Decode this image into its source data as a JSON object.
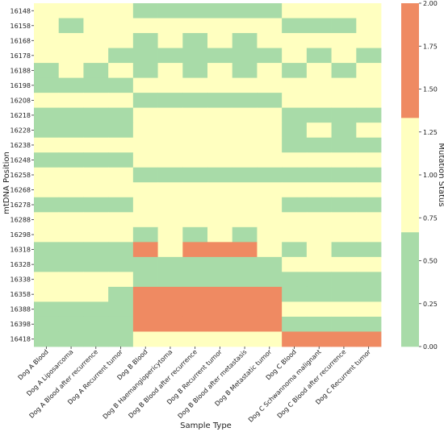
{
  "chart_data": {
    "type": "heatmap",
    "title": "",
    "xlabel": "Sample Type",
    "ylabel": "mtDNA Position",
    "colorbar_label": "Mutation Status",
    "x_categories": [
      "Dog A Blood",
      "Dog A Liposarcoma",
      "Dog A Blood after recurrence",
      "Dog A Recurrent tumor",
      "Dog B Blood",
      "Dog B Haemangiopericytoma",
      "Dog B Blood after recurrence",
      "Dog B Recurrent tumor",
      "Dog B Blood after metastasis",
      "Dog B Metastatic tumor",
      "Dog C Blood",
      "Dog C Schwannoma malignant",
      "Dog C Blood after recurrence",
      "Dog C Recurrent tumor"
    ],
    "y_categories": [
      "16148",
      "16158",
      "16168",
      "16178",
      "16188",
      "16198",
      "16208",
      "16218",
      "16228",
      "16238",
      "16248",
      "16258",
      "16268",
      "16278",
      "16288",
      "16298",
      "16318",
      "16328",
      "16338",
      "16358",
      "16388",
      "16398",
      "16418"
    ],
    "values": [
      [
        1,
        1,
        1,
        1,
        0,
        0,
        0,
        0,
        0,
        0,
        1,
        1,
        1,
        1
      ],
      [
        1,
        0,
        1,
        1,
        1,
        1,
        1,
        1,
        1,
        1,
        0,
        0,
        0,
        1
      ],
      [
        1,
        1,
        1,
        1,
        0,
        1,
        0,
        1,
        0,
        1,
        1,
        1,
        1,
        1
      ],
      [
        1,
        1,
        1,
        0,
        0,
        0,
        0,
        0,
        0,
        0,
        1,
        0,
        1,
        0
      ],
      [
        0,
        1,
        0,
        1,
        0,
        1,
        0,
        1,
        0,
        1,
        0,
        1,
        0,
        1
      ],
      [
        0,
        0,
        0,
        0,
        1,
        1,
        1,
        1,
        1,
        1,
        1,
        1,
        1,
        1
      ],
      [
        1,
        1,
        1,
        1,
        0,
        0,
        0,
        0,
        0,
        0,
        1,
        1,
        1,
        1
      ],
      [
        0,
        0,
        0,
        0,
        1,
        1,
        1,
        1,
        1,
        1,
        0,
        0,
        0,
        0
      ],
      [
        0,
        0,
        0,
        0,
        1,
        1,
        1,
        1,
        1,
        1,
        0,
        1,
        0,
        1
      ],
      [
        1,
        1,
        1,
        1,
        1,
        1,
        1,
        1,
        1,
        1,
        0,
        0,
        0,
        0
      ],
      [
        0,
        0,
        0,
        0,
        1,
        1,
        1,
        1,
        1,
        1,
        1,
        1,
        1,
        1
      ],
      [
        1,
        1,
        1,
        1,
        0,
        0,
        0,
        0,
        0,
        0,
        0,
        0,
        0,
        0
      ],
      [
        1,
        1,
        1,
        1,
        1,
        1,
        1,
        1,
        1,
        1,
        1,
        1,
        1,
        1
      ],
      [
        0,
        0,
        0,
        0,
        1,
        1,
        1,
        1,
        1,
        1,
        0,
        0,
        0,
        0
      ],
      [
        1,
        1,
        1,
        1,
        1,
        1,
        1,
        1,
        1,
        1,
        1,
        1,
        1,
        1
      ],
      [
        1,
        1,
        1,
        1,
        0,
        1,
        0,
        1,
        0,
        1,
        1,
        1,
        1,
        1
      ],
      [
        0,
        0,
        0,
        0,
        2,
        1,
        2,
        2,
        2,
        1,
        0,
        1,
        0,
        0
      ],
      [
        0,
        0,
        0,
        0,
        0,
        0,
        0,
        0,
        0,
        0,
        1,
        1,
        1,
        1
      ],
      [
        1,
        1,
        1,
        1,
        0,
        0,
        0,
        0,
        0,
        0,
        0,
        0,
        0,
        0
      ],
      [
        1,
        1,
        1,
        0,
        2,
        2,
        2,
        2,
        2,
        2,
        0,
        0,
        0,
        0
      ],
      [
        0,
        0,
        0,
        0,
        2,
        2,
        2,
        2,
        2,
        2,
        1,
        1,
        1,
        1
      ],
      [
        0,
        0,
        0,
        0,
        2,
        2,
        2,
        2,
        2,
        2,
        0,
        0,
        0,
        0
      ],
      [
        0,
        0,
        0,
        0,
        1,
        1,
        1,
        1,
        1,
        1,
        2,
        2,
        2,
        2
      ]
    ],
    "value_range": [
      0,
      2
    ],
    "color_levels": [
      {
        "from": 0,
        "to": 0.667,
        "color": "#a8dba8"
      },
      {
        "from": 0.667,
        "to": 1.333,
        "color": "#ffffc0"
      },
      {
        "from": 1.333,
        "to": 2,
        "color": "#ef8a62"
      }
    ],
    "colorbar_ticks": [
      "0.00",
      "0.25",
      "0.50",
      "0.75",
      "1.00",
      "1.25",
      "1.50",
      "1.75",
      "2.00"
    ],
    "colorbar_tick_values": [
      0,
      0.25,
      0.5,
      0.75,
      1.0,
      1.25,
      1.5,
      1.75,
      2.0
    ],
    "grid": false
  }
}
